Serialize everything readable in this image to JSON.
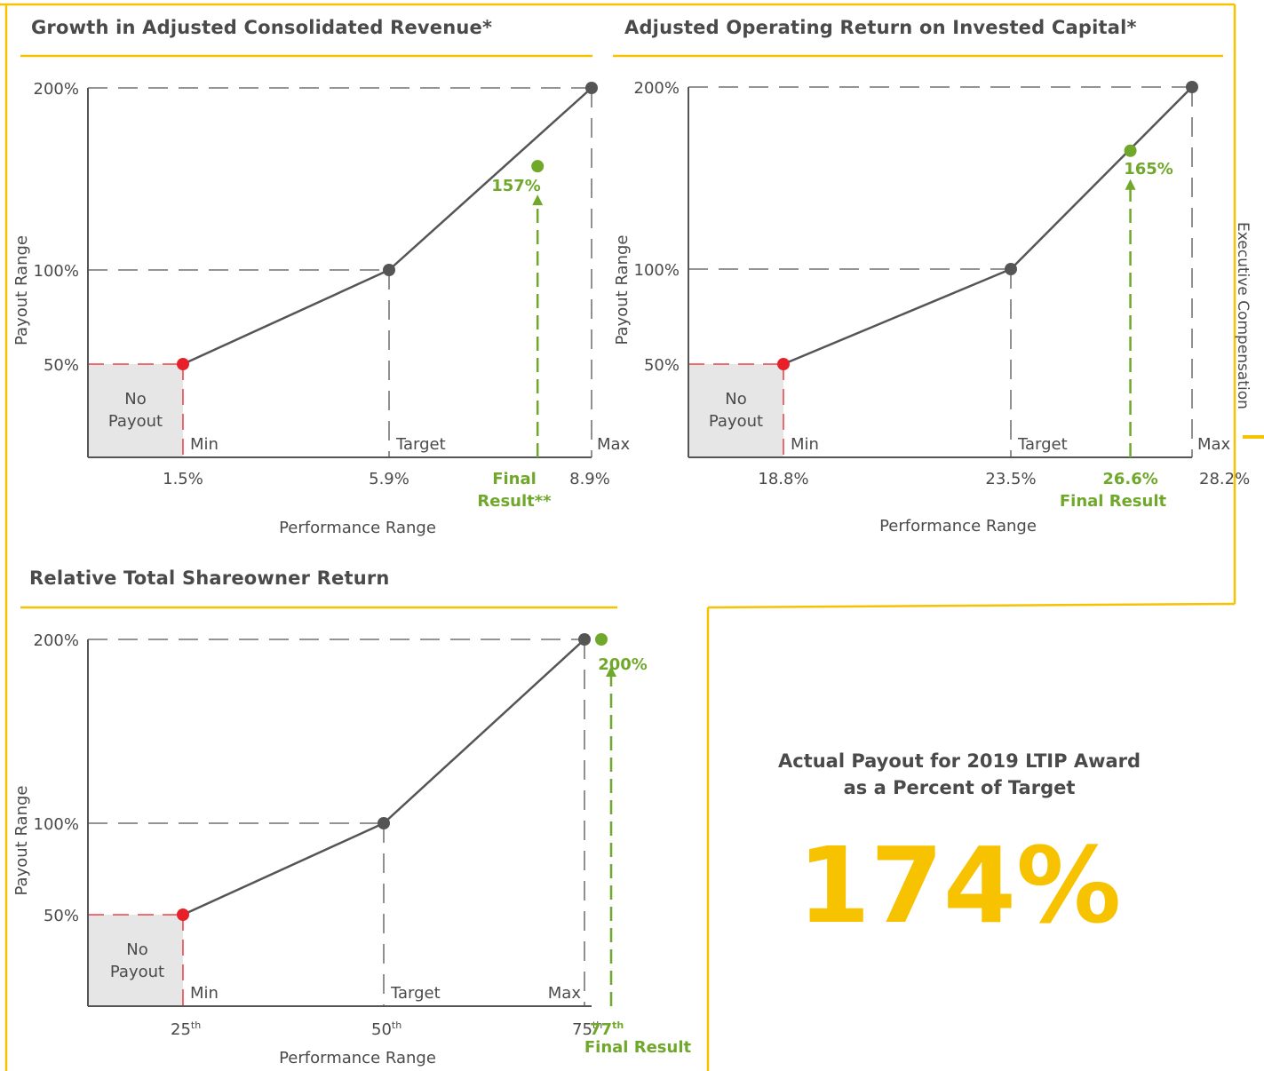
{
  "side_tab": {
    "label": "Executive Compensation"
  },
  "summary": {
    "line1": "Actual Payout for 2019 LTIP Award",
    "line2": "as a Percent of Target",
    "value": "174%"
  },
  "colors": {
    "frame": "#f7c200",
    "line": "#5a5a5a",
    "min_point": "#e8202a",
    "result": "#6fa82b",
    "no_payout_fill": "#e6e6e6"
  },
  "chart_data": [
    {
      "type": "line",
      "title": "Growth in Adjusted Consolidated Revenue*",
      "ylabel": "Payout Range",
      "xlabel": "Performance Range",
      "y_ticks": [
        "50%",
        "100%",
        "200%"
      ],
      "no_payout_label": [
        "No",
        "Payout"
      ],
      "series": [
        {
          "name": "Payout curve",
          "points": [
            {
              "x": 1.5,
              "y": 50
            },
            {
              "x": 5.9,
              "y": 100
            },
            {
              "x": 8.9,
              "y": 200
            }
          ]
        }
      ],
      "threshold_labels": [
        "Min",
        "Target",
        "Max"
      ],
      "x_tick_labels": [
        "1.5%",
        "5.9%",
        "8.9%"
      ],
      "result": {
        "x": 8.1,
        "y": 157,
        "label": "157%",
        "x_label": [
          "Final",
          "Result**"
        ]
      }
    },
    {
      "type": "line",
      "title": "Adjusted Operating Return on Invested Capital*",
      "ylabel": "Payout Range",
      "xlabel": "Performance Range",
      "y_ticks": [
        "50%",
        "100%",
        "200%"
      ],
      "no_payout_label": [
        "No",
        "Payout"
      ],
      "series": [
        {
          "name": "Payout curve",
          "points": [
            {
              "x": 18.8,
              "y": 50
            },
            {
              "x": 23.5,
              "y": 100
            },
            {
              "x": 28.2,
              "y": 200
            }
          ]
        }
      ],
      "threshold_labels": [
        "Min",
        "Target",
        "Max"
      ],
      "x_tick_labels": [
        "18.8%",
        "23.5%",
        "28.2%"
      ],
      "result": {
        "x": 26.6,
        "y": 165,
        "label": "165%",
        "x_value": "26.6%",
        "x_label": [
          "Final Result"
        ]
      }
    },
    {
      "type": "line",
      "title": "Relative Total Shareowner Return",
      "ylabel": "Payout Range",
      "xlabel": "Performance Range",
      "y_ticks": [
        "50%",
        "100%",
        "200%"
      ],
      "no_payout_label": [
        "No",
        "Payout"
      ],
      "series": [
        {
          "name": "Payout curve",
          "points": [
            {
              "x": 25,
              "y": 50
            },
            {
              "x": 50,
              "y": 100
            },
            {
              "x": 75,
              "y": 200
            }
          ]
        }
      ],
      "threshold_labels": [
        "Min",
        "Target",
        "Max"
      ],
      "x_tick_labels": [
        {
          "num": "25",
          "sup": "th"
        },
        {
          "num": "50",
          "sup": "th"
        },
        {
          "num": "75",
          "sup": "th"
        }
      ],
      "result": {
        "x": 77,
        "y": 200,
        "label": "200%",
        "x_value": {
          "num": "77",
          "sup": "th"
        },
        "x_label": [
          "Final Result"
        ]
      }
    }
  ]
}
